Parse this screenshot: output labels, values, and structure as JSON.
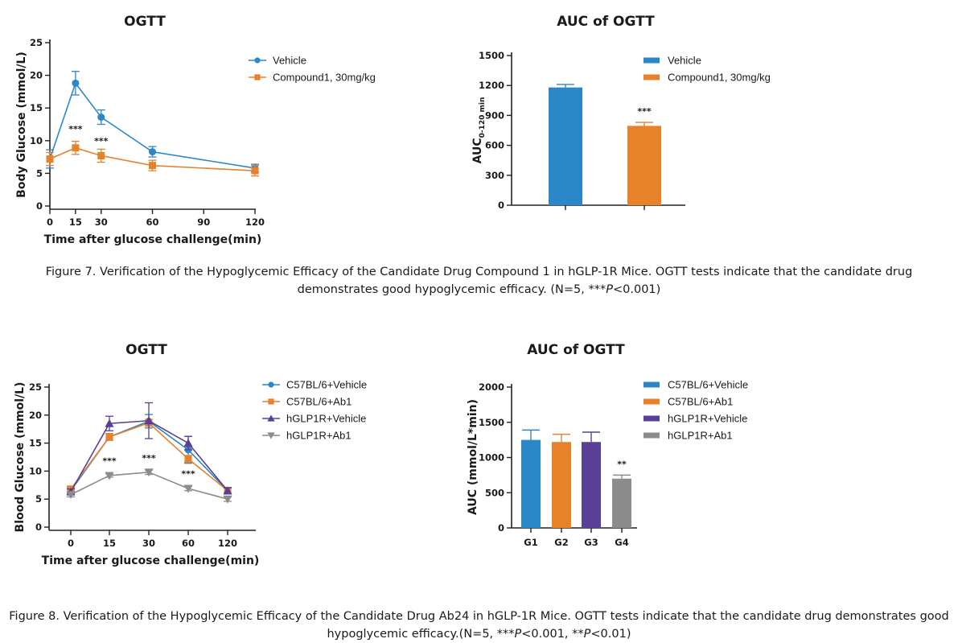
{
  "chart_data": [
    {
      "id": "c1",
      "type": "line",
      "title": "OGTT",
      "xlabel": "Time after glucose challenge(min)",
      "ylabel": "Body Glucose (mmol/L)",
      "x": [
        0,
        15,
        30,
        60,
        120
      ],
      "xticks": [
        0,
        15,
        30,
        60,
        90,
        120
      ],
      "xlim": [
        0,
        120
      ],
      "yticks": [
        0,
        5,
        10,
        15,
        20,
        25
      ],
      "ylim": [
        0,
        25
      ],
      "series": [
        {
          "name": "Vehicle",
          "color": "#2c87c8",
          "marker": "circle",
          "values": [
            7.2,
            18.8,
            13.6,
            8.3,
            5.8
          ],
          "errors": [
            1.4,
            1.8,
            1.1,
            0.8,
            0.6
          ]
        },
        {
          "name": "Compound1, 30mg/kg",
          "color": "#e8822a",
          "marker": "square",
          "values": [
            7.2,
            8.9,
            7.7,
            6.2,
            5.4
          ],
          "errors": [
            1.0,
            1.0,
            1.0,
            0.8,
            0.8
          ]
        }
      ],
      "annotations": [
        {
          "x": 15,
          "y": 11.3,
          "text": "***"
        },
        {
          "x": 30,
          "y": 9.5,
          "text": "***"
        }
      ],
      "legend": "top-right"
    },
    {
      "id": "c2",
      "type": "bar",
      "title": "AUC of OGTT",
      "ylabel": "AUC",
      "ylabel_sub": "0-120 min",
      "categories": [
        "Vehicle",
        "Compound1, 30mg/kg"
      ],
      "values": [
        1180,
        795
      ],
      "errors": [
        30,
        35
      ],
      "colors": [
        "#2c87c8",
        "#e8822a"
      ],
      "yticks": [
        0,
        300,
        600,
        900,
        1200,
        1500
      ],
      "ylim": [
        0,
        1500
      ],
      "annotations": [
        {
          "index": 1,
          "text": "***"
        }
      ],
      "legend": "top-right"
    },
    {
      "id": "c3",
      "type": "line",
      "title": "OGTT",
      "xlabel": "Time after glucose challenge(min)",
      "ylabel": "Blood Glucose (mmol/L)",
      "x": [
        "0",
        "15",
        "30",
        "60",
        "120"
      ],
      "yticks": [
        0,
        5,
        10,
        15,
        20,
        25
      ],
      "ylim": [
        0,
        25
      ],
      "series": [
        {
          "name": "C57BL/6+Vehicle",
          "color": "#2c87c8",
          "marker": "circle",
          "values": [
            6.5,
            16.1,
            18.9,
            13.8,
            6.5
          ],
          "errors": [
            0.5,
            0.6,
            1.2,
            2.4,
            0.6
          ]
        },
        {
          "name": "C57BL/6+Ab1",
          "color": "#e8822a",
          "marker": "square",
          "values": [
            6.8,
            16.1,
            18.6,
            12.2,
            6.5
          ],
          "errors": [
            0.5,
            0.6,
            0.6,
            0.6,
            0.5
          ]
        },
        {
          "name": "hGLP1R+Vehicle",
          "color": "#5a3f96",
          "marker": "triangle-up",
          "values": [
            6.3,
            18.5,
            19.0,
            15.0,
            6.5
          ],
          "errors": [
            0.5,
            1.3,
            3.2,
            1.2,
            0.5
          ]
        },
        {
          "name": "hGLP1R+Ab1",
          "color": "#8c8c8c",
          "marker": "triangle-down",
          "values": [
            5.8,
            9.2,
            9.8,
            6.9,
            5.0
          ],
          "errors": [
            0.4,
            0.3,
            0.4,
            0.4,
            0.4
          ]
        }
      ],
      "annotations": [
        {
          "x": "15",
          "y": 11.3,
          "text": "***"
        },
        {
          "x": "30",
          "y": 11.8,
          "text": "***"
        },
        {
          "x": "60",
          "y": 9.0,
          "text": "***"
        }
      ],
      "legend": "top-right"
    },
    {
      "id": "c4",
      "type": "bar",
      "title": "AUC of OGTT",
      "ylabel": "AUC (mmol/L*min)",
      "categories": [
        "G1",
        "G2",
        "G3",
        "G4"
      ],
      "legend_labels": [
        "C57BL/6+Vehicle",
        "C57BL/6+Ab1",
        "hGLP1R+Vehicle",
        "hGLP1R+Ab1"
      ],
      "values": [
        1250,
        1220,
        1220,
        700
      ],
      "errors": [
        140,
        110,
        140,
        50
      ],
      "colors": [
        "#2c87c8",
        "#e8822a",
        "#5a3f96",
        "#8c8c8c"
      ],
      "yticks": [
        0,
        500,
        1000,
        1500,
        2000
      ],
      "ylim": [
        0,
        2000
      ],
      "annotations": [
        {
          "index": 3,
          "text": "**"
        }
      ],
      "legend": "top-right"
    }
  ],
  "captions": {
    "fig7_line1": "Figure 7. Verification of the Hypoglycemic Efficacy of the Candidate Drug Compound 1 in hGLP-1R Mice. OGTT tests indicate that the candidate drug",
    "fig7_line2a": "demonstrates good hypoglycemic efficacy. (N=5,  ***",
    "fig7_p": "P",
    "fig7_line2b": "<0.001)",
    "fig8_line1": "Figure 8. Verification of the Hypoglycemic Efficacy of the Candidate Drug Ab24 in hGLP-1R Mice. OGTT tests indicate that the candidate drug demonstrates good",
    "fig8_line2a": "hypoglycemic efficacy.(N=5, ***",
    "fig8_p1": "P",
    "fig8_line2b": "<0.001, **",
    "fig8_p2": "P",
    "fig8_line2c": "<0.01)"
  }
}
